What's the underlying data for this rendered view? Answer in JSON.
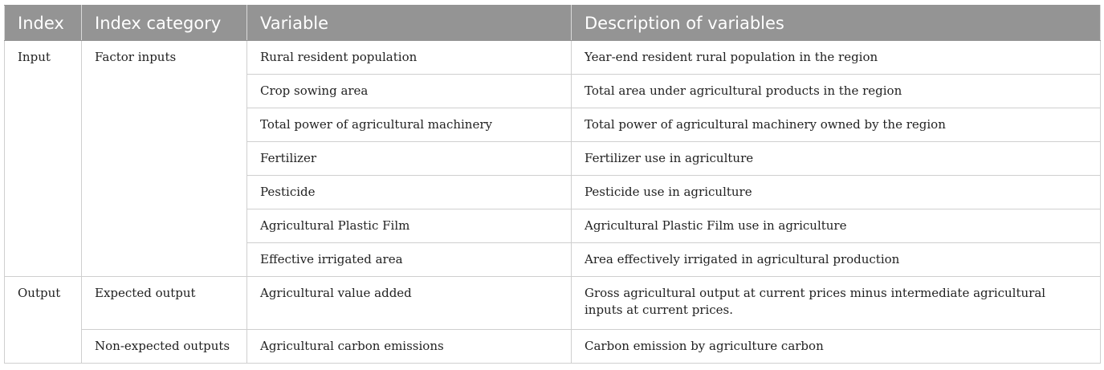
{
  "headers": [
    "Index",
    "Index category",
    "Variable",
    "Description of variables"
  ],
  "groups": [
    {
      "index": "Input",
      "categories": [
        {
          "name": "Factor inputs",
          "rows": [
            {
              "variable": "Rural resident population",
              "description": "Year-end resident rural population in the region"
            },
            {
              "variable": "Crop sowing area",
              "description": "Total area under agricultural products in the region"
            },
            {
              "variable": "Total power of agricultural machinery",
              "description": "Total power of agricultural machinery owned by the region"
            },
            {
              "variable": "Fertilizer",
              "description": "Fertilizer use in agriculture"
            },
            {
              "variable": "Pesticide",
              "description": "Pesticide use in agriculture"
            },
            {
              "variable": "Agricultural Plastic Film",
              "description": "Agricultural Plastic Film use in agriculture"
            },
            {
              "variable": "Effective irrigated area",
              "description": "Area effectively irrigated in agricultural production"
            }
          ]
        }
      ]
    },
    {
      "index": "Output",
      "categories": [
        {
          "name": "Expected output",
          "rows": [
            {
              "variable": "Agricultural value added",
              "description": "Gross agricultural output at current prices minus intermediate agricultural inputs at current prices."
            }
          ]
        },
        {
          "name": "Non-expected outputs",
          "rows": [
            {
              "variable": "Agricultural carbon emissions",
              "description": "Carbon emission by agriculture carbon"
            }
          ]
        }
      ]
    }
  ],
  "colors": {
    "header_bg": "#949494",
    "header_text": "#ffffff",
    "grid": "#cfcfcf"
  }
}
